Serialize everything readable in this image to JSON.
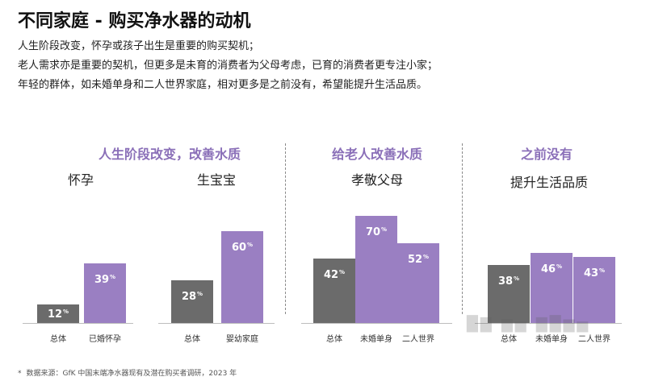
{
  "title": "不同家庭 - 购买净水器的动机",
  "intro": [
    "人生阶段改变，怀孕或孩子出生是重要的购买契机；",
    "老人需求亦是重要的契机，但更多是未育的消费者为父母考虑，已育的消费者更专注小家；",
    "年轻的群体，如未婚单身和二人世界家庭，相对更多是之前没有，希望能提升生活品质。"
  ],
  "group_titles": [
    "人生阶段改变，改善水质",
    "给老人改善水质",
    "之前没有"
  ],
  "sub_titles": [
    "怀孕",
    "生宝宝",
    "孝敬父母",
    "提升生活品质"
  ],
  "footnote": {
    "mark": "*",
    "text": "数据来源：GfK 中国末端净水器现有及潜在购买者调研，2023 年"
  },
  "colors": {
    "grey": "#6b6b6b",
    "purple": "#9a7fc2",
    "accent_text": "#8a6fb8"
  },
  "chart_data": [
    {
      "type": "bar",
      "title": "怀孕",
      "categories": [
        "总体",
        "已婚怀孕"
      ],
      "values": [
        12,
        39
      ],
      "unit": "%"
    },
    {
      "type": "bar",
      "title": "生宝宝",
      "categories": [
        "总体",
        "婴幼家庭"
      ],
      "values": [
        28,
        60
      ],
      "unit": "%"
    },
    {
      "type": "bar",
      "title": "孝敬父母",
      "categories": [
        "总体",
        "未婚单身",
        "二人世界"
      ],
      "values": [
        42,
        70,
        52
      ],
      "unit": "%"
    },
    {
      "type": "bar",
      "title": "提升生活品质",
      "categories": [
        "总体",
        "未婚单身",
        "二人世界"
      ],
      "values": [
        38,
        46,
        43
      ],
      "unit": "%"
    }
  ]
}
